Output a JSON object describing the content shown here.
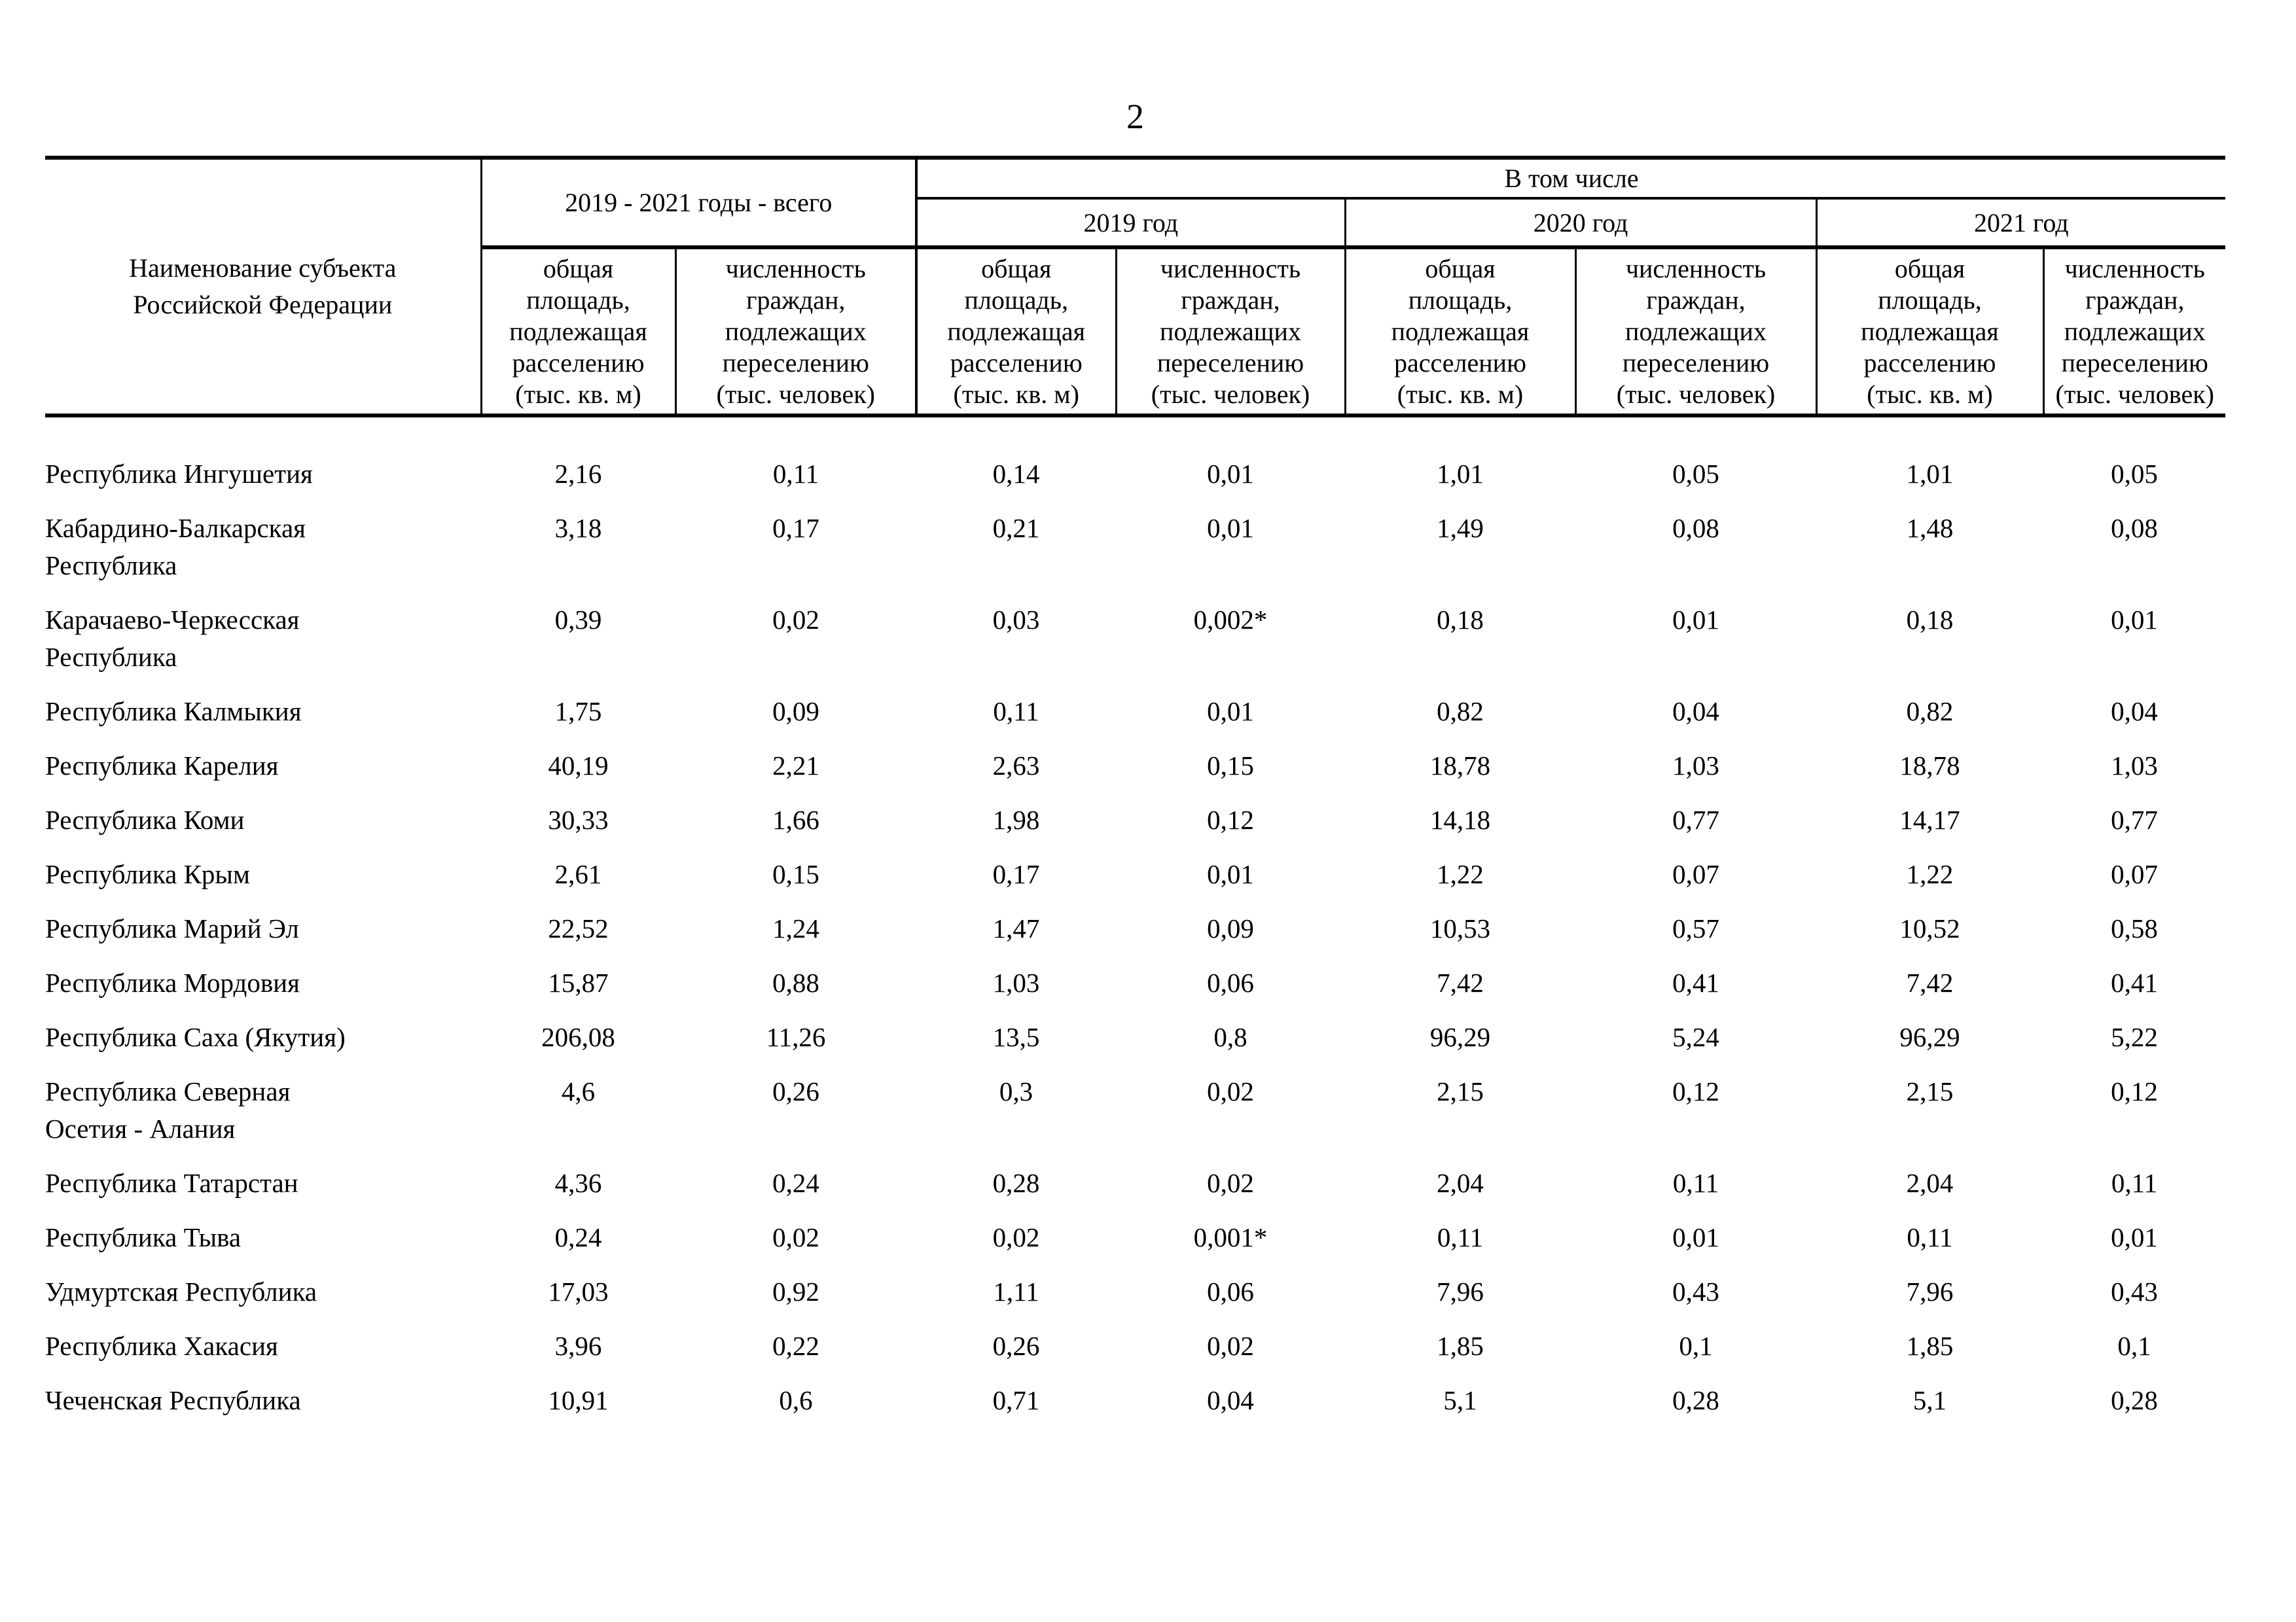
{
  "page": {
    "number": "2"
  },
  "table": {
    "header": {
      "subject": "Наименование субъекта\nРоссийской Федерации",
      "total_group": "2019 - 2021 годы - всего",
      "including": "В том числе",
      "years": [
        "2019 год",
        "2020 год",
        "2021 год"
      ],
      "area_label": "общая\nплощадь,\nподлежащая\nрасселению\n(тыс. кв. м)",
      "citizens_label": "численность\nграждан,\nподлежащих\nпереселению\n(тыс. человек)"
    },
    "rows": [
      {
        "name": "Республика Ингушетия",
        "values": [
          "2,16",
          "0,11",
          "0,14",
          "0,01",
          "1,01",
          "0,05",
          "1,01",
          "0,05"
        ]
      },
      {
        "name": "Кабардино-Балкарская\nРеспублика",
        "values": [
          "3,18",
          "0,17",
          "0,21",
          "0,01",
          "1,49",
          "0,08",
          "1,48",
          "0,08"
        ]
      },
      {
        "name": "Карачаево-Черкесская\nРеспублика",
        "values": [
          "0,39",
          "0,02",
          "0,03",
          "0,002*",
          "0,18",
          "0,01",
          "0,18",
          "0,01"
        ]
      },
      {
        "name": "Республика Калмыкия",
        "values": [
          "1,75",
          "0,09",
          "0,11",
          "0,01",
          "0,82",
          "0,04",
          "0,82",
          "0,04"
        ]
      },
      {
        "name": "Республика Карелия",
        "values": [
          "40,19",
          "2,21",
          "2,63",
          "0,15",
          "18,78",
          "1,03",
          "18,78",
          "1,03"
        ]
      },
      {
        "name": "Республика Коми",
        "values": [
          "30,33",
          "1,66",
          "1,98",
          "0,12",
          "14,18",
          "0,77",
          "14,17",
          "0,77"
        ]
      },
      {
        "name": "Республика Крым",
        "values": [
          "2,61",
          "0,15",
          "0,17",
          "0,01",
          "1,22",
          "0,07",
          "1,22",
          "0,07"
        ]
      },
      {
        "name": "Республика Марий Эл",
        "values": [
          "22,52",
          "1,24",
          "1,47",
          "0,09",
          "10,53",
          "0,57",
          "10,52",
          "0,58"
        ]
      },
      {
        "name": "Республика Мордовия",
        "values": [
          "15,87",
          "0,88",
          "1,03",
          "0,06",
          "7,42",
          "0,41",
          "7,42",
          "0,41"
        ]
      },
      {
        "name": "Республика Саха (Якутия)",
        "values": [
          "206,08",
          "11,26",
          "13,5",
          "0,8",
          "96,29",
          "5,24",
          "96,29",
          "5,22"
        ]
      },
      {
        "name": "Республика Северная\nОсетия - Алания",
        "values": [
          "4,6",
          "0,26",
          "0,3",
          "0,02",
          "2,15",
          "0,12",
          "2,15",
          "0,12"
        ]
      },
      {
        "name": "Республика Татарстан",
        "values": [
          "4,36",
          "0,24",
          "0,28",
          "0,02",
          "2,04",
          "0,11",
          "2,04",
          "0,11"
        ]
      },
      {
        "name": "Республика Тыва",
        "values": [
          "0,24",
          "0,02",
          "0,02",
          "0,001*",
          "0,11",
          "0,01",
          "0,11",
          "0,01"
        ]
      },
      {
        "name": "Удмуртская Республика",
        "values": [
          "17,03",
          "0,92",
          "1,11",
          "0,06",
          "7,96",
          "0,43",
          "7,96",
          "0,43"
        ]
      },
      {
        "name": "Республика Хакасия",
        "values": [
          "3,96",
          "0,22",
          "0,26",
          "0,02",
          "1,85",
          "0,1",
          "1,85",
          "0,1"
        ]
      },
      {
        "name": "Чеченская Республика",
        "values": [
          "10,91",
          "0,6",
          "0,71",
          "0,04",
          "5,1",
          "0,28",
          "5,1",
          "0,28"
        ]
      }
    ]
  }
}
